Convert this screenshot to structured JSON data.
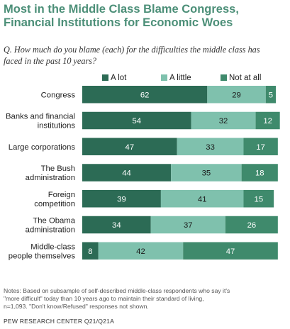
{
  "header": {
    "title_line1": "Most in the Middle Class Blame Congress,",
    "title_line2": "Financial Institutions for Economic Woes",
    "question_line1": "Q. How much do you blame (each) for the difficulties the middle class has",
    "question_line2": "faced in the past 10 years?"
  },
  "footer": {
    "notes_line1": "Notes: Based on subsample of self-described middle-class respondents who say it's",
    "notes_line2": "\"more difficult\" today than 10 years ago to maintain their standard of living,",
    "notes_line3": "n=1,093. \"Don't know/Refused\" responses not shown.",
    "source": "PEW RESEARCH CENTER Q21/Q21A"
  },
  "colors": {
    "a_lot": "#2c6b55",
    "a_little": "#7fc1ad",
    "not_at_all": "#3f8a6c",
    "title": "#4c8f78"
  },
  "chart_data": {
    "type": "bar",
    "orientation": "horizontal",
    "stacked": true,
    "legend_position": "top",
    "categories": [
      [
        "Congress"
      ],
      [
        "Banks and financial",
        "institutions"
      ],
      [
        "Large corporations"
      ],
      [
        "The Bush",
        "administration"
      ],
      [
        "Foreign",
        "competition"
      ],
      [
        "The Obama",
        "administration"
      ],
      [
        "Middle-class",
        "people themselves"
      ]
    ],
    "series": [
      {
        "name": "A lot",
        "color": "#2c6b55",
        "values": [
          62,
          54,
          47,
          44,
          39,
          34,
          8
        ]
      },
      {
        "name": "A little",
        "color": "#7fc1ad",
        "values": [
          29,
          32,
          33,
          35,
          41,
          37,
          42
        ]
      },
      {
        "name": "Not at all",
        "color": "#3f8a6c",
        "values": [
          5,
          12,
          17,
          18,
          15,
          26,
          47
        ]
      }
    ]
  }
}
